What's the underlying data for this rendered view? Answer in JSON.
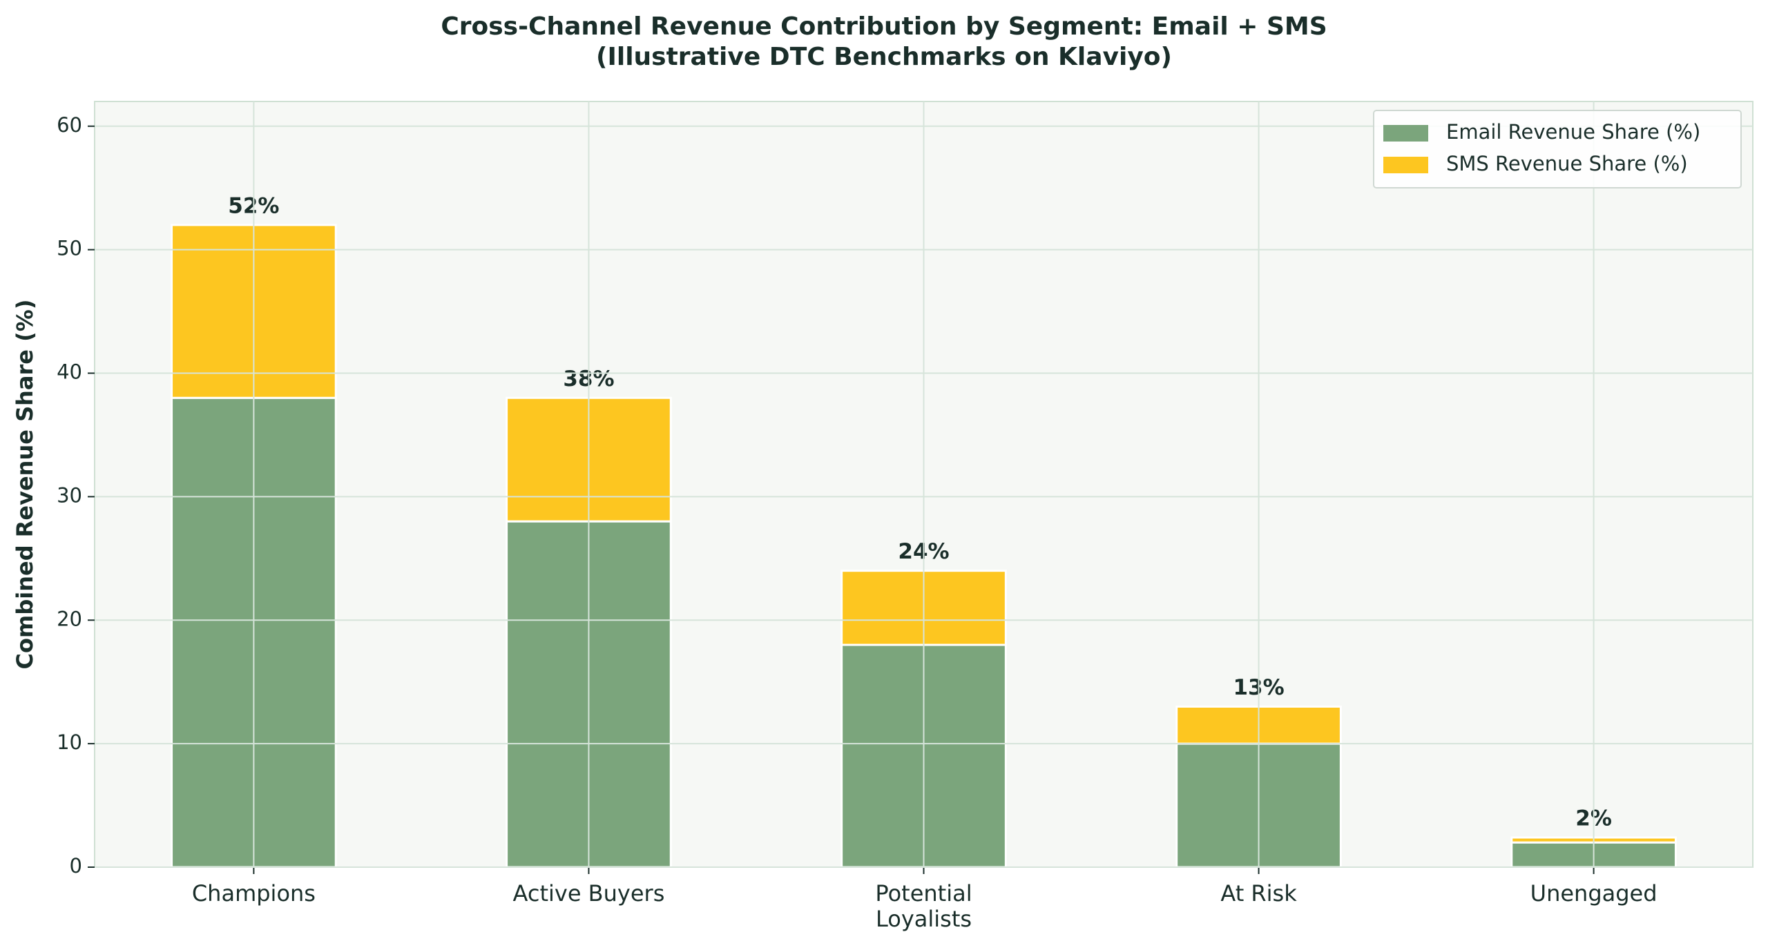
{
  "chart_data": {
    "type": "stacked_bar",
    "title": "Cross-Channel Revenue Contribution by Segment: Email + SMS\n(Illustrative DTC Benchmarks on Klaviyo)",
    "ylabel": "Combined Revenue Share (%)",
    "categories": [
      "Champions",
      "Active Buyers",
      "Potential\nLoyalists",
      "At Risk",
      "Unengaged"
    ],
    "series": [
      {
        "name": "Email Revenue Share (%)",
        "color": "#7ba57c",
        "values": [
          38,
          28,
          18,
          10,
          2
        ]
      },
      {
        "name": "SMS Revenue Share (%)",
        "color": "#fdc620",
        "values": [
          14,
          10,
          6,
          3,
          0.4
        ]
      }
    ],
    "total_labels": [
      "52%",
      "38%",
      "24%",
      "13%",
      "2%"
    ],
    "ylim": [
      0,
      62
    ],
    "yticks": [
      0,
      10,
      20,
      30,
      40,
      50,
      60
    ],
    "grid": true,
    "legend": "upper right"
  }
}
